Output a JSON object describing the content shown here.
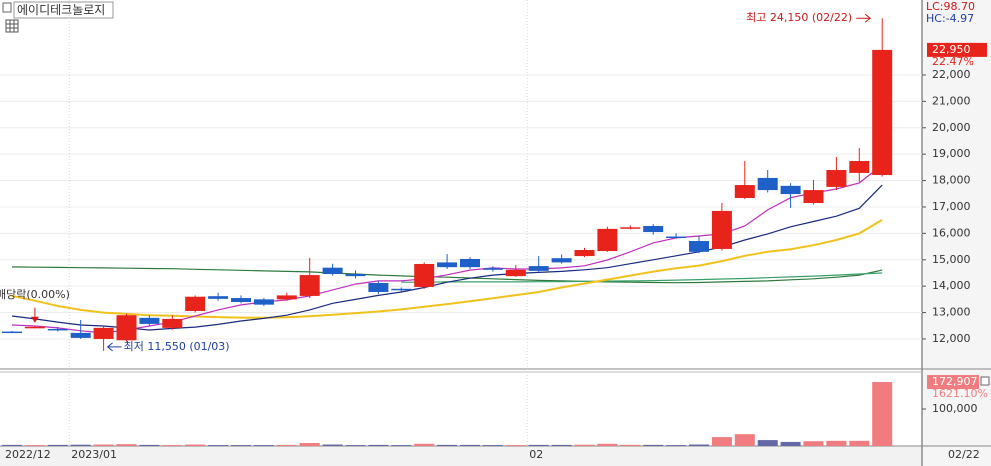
{
  "chart_data": [
    {
      "type": "candlestick",
      "title": "에이디테크놀로지",
      "categories": [
        "2022/12",
        null,
        null,
        "2023/01",
        null,
        null,
        null,
        null,
        null,
        null,
        null,
        null,
        null,
        null,
        null,
        null,
        null,
        null,
        null,
        null,
        null,
        null,
        null,
        "02",
        null,
        null,
        null,
        null,
        null,
        null,
        null,
        null,
        null,
        null,
        null,
        null,
        null,
        null,
        null
      ],
      "open": [
        12280,
        12430,
        12380,
        12230,
        12000,
        11950,
        12800,
        12420,
        13060,
        13620,
        13550,
        13500,
        13500,
        13630,
        14700,
        14460,
        14120,
        13900,
        13970,
        14900,
        15030,
        14680,
        14380,
        14760,
        15060,
        15140,
        15330,
        16180,
        16280,
        15880,
        15710,
        15410,
        17340,
        18100,
        17800,
        17150,
        17760,
        18290,
        18210
      ],
      "high": [
        12300,
        12500,
        12450,
        12720,
        12500,
        12950,
        12900,
        12900,
        13650,
        13750,
        13650,
        13550,
        13750,
        15070,
        14850,
        14600,
        14200,
        13950,
        14900,
        15220,
        15100,
        14750,
        14800,
        15140,
        15200,
        15450,
        16250,
        16300,
        16350,
        16000,
        15900,
        17150,
        18740,
        18400,
        17900,
        18020,
        18890,
        19230,
        24150
      ],
      "low": [
        12240,
        12400,
        12280,
        12000,
        11550,
        11900,
        12500,
        12350,
        13000,
        13450,
        13350,
        13250,
        13450,
        13550,
        14400,
        14300,
        13700,
        13800,
        13900,
        14650,
        14650,
        14550,
        14350,
        14550,
        14850,
        15100,
        15300,
        16150,
        15950,
        15800,
        15250,
        15350,
        17300,
        17550,
        16960,
        17100,
        17640,
        17950,
        18150
      ],
      "close": [
        12260,
        12460,
        12330,
        12040,
        12420,
        12900,
        12570,
        12760,
        13600,
        13520,
        13400,
        13300,
        13650,
        14420,
        14460,
        14380,
        13780,
        13860,
        14840,
        14720,
        14720,
        14620,
        14620,
        14580,
        14900,
        15370,
        16170,
        16230,
        16050,
        15840,
        15300,
        16850,
        17830,
        17640,
        17490,
        17640,
        18400,
        18740,
        22950
      ],
      "up_color": "#e8231c",
      "down_color": "#1f5fc8",
      "lines": [
        {
          "color": "#2f7a3c",
          "values": [
            14730,
            14720,
            14710,
            14700,
            14690,
            14680,
            14670,
            14660,
            14640,
            14620,
            14600,
            14580,
            14560,
            14540,
            14500,
            14460,
            14420,
            14390,
            14360,
            14340,
            14310,
            14280,
            14250,
            14220,
            14200,
            14180,
            14160,
            14150,
            14140,
            14130,
            14140,
            14160,
            14180,
            14200,
            14240,
            14280,
            14340,
            14420,
            14610
          ]
        },
        {
          "color": "#3aa06a",
          "values": [
            null,
            null,
            null,
            null,
            null,
            null,
            null,
            null,
            null,
            null,
            null,
            null,
            null,
            null,
            null,
            null,
            null,
            14150,
            14150,
            14160,
            14160,
            14160,
            14160,
            14170,
            14170,
            14180,
            14190,
            14200,
            14210,
            14230,
            14250,
            14270,
            14290,
            14320,
            14350,
            14380,
            14420,
            14460,
            14500
          ]
        },
        {
          "color": "#f2c21c",
          "values": [
            13630,
            13450,
            13250,
            13100,
            13000,
            12950,
            12900,
            12880,
            12850,
            12830,
            12810,
            12800,
            12820,
            12860,
            12920,
            12980,
            13040,
            13120,
            13220,
            13320,
            13430,
            13540,
            13660,
            13780,
            13950,
            14100,
            14250,
            14400,
            14550,
            14680,
            14780,
            14950,
            15150,
            15300,
            15400,
            15550,
            15750,
            16000,
            16510
          ]
        },
        {
          "color": "#1a2a80",
          "values": [
            12870,
            12760,
            12640,
            12530,
            12490,
            12420,
            12340,
            12400,
            12450,
            12550,
            12680,
            12780,
            12900,
            13100,
            13350,
            13500,
            13650,
            13780,
            13950,
            14150,
            14300,
            14420,
            14480,
            14520,
            14560,
            14620,
            14700,
            14850,
            15000,
            15150,
            15300,
            15480,
            15750,
            15980,
            16250,
            16450,
            16650,
            16950,
            17830
          ]
        },
        {
          "color": "#c02fc0",
          "values": [
            12530,
            12490,
            12420,
            12310,
            12230,
            12340,
            12490,
            12640,
            12870,
            13100,
            13290,
            13400,
            13480,
            13630,
            13860,
            14080,
            14200,
            14200,
            14280,
            14430,
            14610,
            14690,
            14650,
            14650,
            14690,
            14770,
            14990,
            15300,
            15640,
            15830,
            15900,
            15980,
            16280,
            16890,
            17350,
            17530,
            17680,
            17910,
            18590
          ]
        }
      ],
      "ylim": [
        10900,
        24840
      ],
      "yticks": [
        {
          "value": 12000,
          "label": "12,000"
        },
        {
          "value": 13000,
          "label": "13,000"
        },
        {
          "value": 14000,
          "label": "14,000"
        },
        {
          "value": 15000,
          "label": "15,000"
        },
        {
          "value": 16000,
          "label": "16,000"
        },
        {
          "value": 17000,
          "label": "17,000"
        },
        {
          "value": 18000,
          "label": "18,000"
        },
        {
          "value": 19000,
          "label": "19,000"
        },
        {
          "value": 20000,
          "label": "20,000"
        },
        {
          "value": 21000,
          "label": "21,000"
        },
        {
          "value": 22000,
          "label": "22,000"
        }
      ],
      "grid": true,
      "indicators": {
        "lc": "LC:98.70",
        "hc": "HC:-4.97"
      },
      "price_marker": {
        "value": 22950,
        "label": "22,950",
        "change": "22.47%"
      },
      "last_date": "02/22",
      "annotations": {
        "high": "최고 24,150 (02/22)",
        "low": "최저 11,550 (01/03)",
        "dividend": "배당락(0.00%)"
      }
    },
    {
      "type": "bar",
      "values": [
        3000,
        2500,
        3000,
        3500,
        4000,
        5000,
        3000,
        2500,
        4000,
        2500,
        2500,
        2500,
        3000,
        8000,
        4000,
        2500,
        3000,
        2500,
        6000,
        3000,
        3000,
        2500,
        2500,
        3000,
        3000,
        3500,
        6000,
        3000,
        3000,
        2500,
        4000,
        24000,
        32000,
        16000,
        11000,
        13000,
        14000,
        14000,
        172907
      ],
      "value_labels": [
        null,
        null,
        null,
        null,
        null,
        null,
        null,
        null,
        null,
        null,
        null,
        null,
        null,
        null,
        null,
        null,
        null,
        null,
        null,
        null,
        null,
        null,
        null,
        null,
        null,
        null,
        null,
        null,
        null,
        null,
        null,
        null,
        null,
        null,
        null,
        null,
        null,
        null,
        "172,907"
      ],
      "up_color": "#f07c80",
      "down_color": "#6468a6",
      "ylim": [
        0,
        200000
      ],
      "yticks": [
        {
          "value": 100000,
          "label": "100,000"
        }
      ],
      "change_label": "1621.10%"
    }
  ]
}
